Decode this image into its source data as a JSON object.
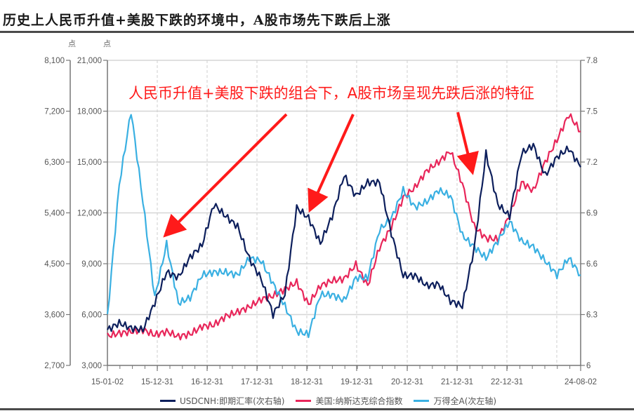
{
  "title": "历史上人民币升值+美股下跌的环境中，A股市场先下跌后上涨",
  "annotation": "人民币升值+美股下跌的组合下，A股市场呈现先跌后涨的特征",
  "axes": {
    "left_outer_unit": "点",
    "left_inner_unit": "点",
    "left_outer_ticks": [
      "8,100",
      "7,200",
      "6,300",
      "5,400",
      "4,500",
      "3,600",
      "2,700"
    ],
    "left_inner_ticks": [
      "21,000",
      "18,000",
      "15,000",
      "12,000",
      "9,000",
      "6,000",
      "3,000"
    ],
    "right_ticks": [
      "7.8",
      "7.5",
      "7.2",
      "6.9",
      "6.6",
      "6.3",
      "6"
    ],
    "x_ticks": [
      "15-01-02",
      "15-12-31",
      "16-12-31",
      "17-12-31",
      "18-12-31",
      "19-12-31",
      "20-12-31",
      "21-12-31",
      "22-12-31",
      "24-08-02"
    ]
  },
  "legend": [
    {
      "label": "USDCNH:即期汇率(次右轴)",
      "color": "#0d1f5c"
    },
    {
      "label": "美国:纳斯达克综合指数",
      "color": "#e8265a"
    },
    {
      "label": "万得全A(次左轴)",
      "color": "#3ab0e2"
    }
  ],
  "chart_data": {
    "type": "line",
    "title": "历史上人民币升值+美股下跌的环境中，A股市场先下跌后上涨",
    "annotations": [
      "人民币升值+美股下跌的组合下，A股市场呈现先跌后涨的特征"
    ],
    "x_range": [
      "2015-01-02",
      "2024-08-02"
    ],
    "x_tick_labels": [
      "15-01-02",
      "15-12-31",
      "16-12-31",
      "17-12-31",
      "18-12-31",
      "19-12-31",
      "20-12-31",
      "21-12-31",
      "22-12-31",
      "24-08-02"
    ],
    "axes": {
      "left_outer": {
        "label": "点",
        "series": "万得全A(次左轴)",
        "range": [
          2700,
          8100
        ],
        "step": 900
      },
      "left_inner": {
        "label": "点",
        "series": "美国:纳斯达克综合指数",
        "range": [
          3000,
          21000
        ],
        "step": 3000
      },
      "right": {
        "label": "",
        "series": "USDCNH:即期汇率(次右轴)",
        "range": [
          6.0,
          7.8
        ],
        "step": 0.3
      }
    },
    "grid": true,
    "legend_position": "bottom",
    "x": [
      "2015-01",
      "2015-04",
      "2015-06",
      "2015-07",
      "2015-09",
      "2015-12",
      "2016-03",
      "2016-06",
      "2016-09",
      "2016-12",
      "2017-03",
      "2017-06",
      "2017-09",
      "2017-12",
      "2018-03",
      "2018-06",
      "2018-10",
      "2018-12",
      "2019-03",
      "2019-05",
      "2019-08",
      "2019-12",
      "2020-03",
      "2020-06",
      "2020-09",
      "2020-12",
      "2021-03",
      "2021-06",
      "2021-09",
      "2021-12",
      "2022-03",
      "2022-06",
      "2022-10",
      "2022-12",
      "2023-03",
      "2023-06",
      "2023-09",
      "2023-12",
      "2024-03",
      "2024-06",
      "2024-08"
    ],
    "series": [
      {
        "name": "USDCNH:即期汇率(次右轴)",
        "axis": "right",
        "values": [
          6.21,
          6.25,
          6.22,
          6.21,
          6.37,
          6.55,
          6.52,
          6.64,
          6.71,
          6.95,
          6.88,
          6.82,
          6.63,
          6.51,
          6.3,
          6.42,
          6.93,
          6.87,
          6.72,
          6.88,
          7.12,
          7.0,
          7.08,
          7.08,
          6.78,
          6.53,
          6.53,
          6.47,
          6.48,
          6.38,
          6.35,
          6.69,
          7.25,
          6.95,
          6.88,
          7.25,
          7.3,
          7.12,
          7.23,
          7.28,
          7.17
        ]
      },
      {
        "name": "美国:纳斯达克综合指数",
        "axis": "left_inner",
        "values": [
          4730,
          4900,
          4980,
          5100,
          4800,
          5000,
          4700,
          4850,
          5300,
          5380,
          5900,
          6150,
          6450,
          6900,
          7100,
          7500,
          7900,
          6600,
          7700,
          8000,
          8100,
          8950,
          7700,
          9950,
          11150,
          12900,
          13500,
          14500,
          15000,
          15650,
          13700,
          11200,
          10500,
          10450,
          11850,
          13800,
          13300,
          15000,
          16300,
          17800,
          16800
        ]
      },
      {
        "name": "万得全A(次左轴)",
        "axis": "left_outer",
        "values": [
          3550,
          5900,
          7200,
          5600,
          3900,
          4850,
          3800,
          3900,
          4300,
          4350,
          4350,
          4300,
          4600,
          4550,
          4150,
          3750,
          3300,
          3250,
          3950,
          3950,
          3850,
          4250,
          4250,
          5100,
          5300,
          5800,
          5500,
          5600,
          5800,
          5700,
          5000,
          4800,
          4600,
          4900,
          5250,
          4900,
          4800,
          4550,
          4300,
          4600,
          4300
        ]
      }
    ]
  }
}
